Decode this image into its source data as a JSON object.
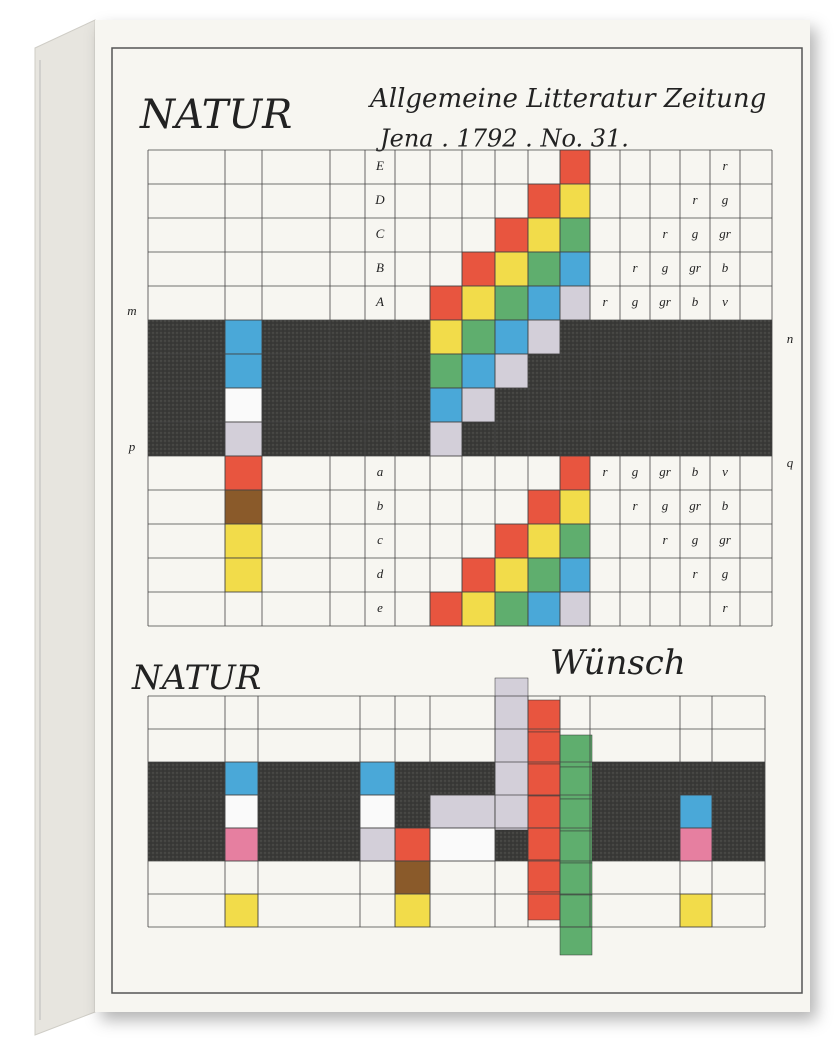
{
  "header": {
    "title": "NATUR",
    "journal": "Allgemeine Litteratur Zeitung",
    "imprint": "Jena . 1792 . No. 31."
  },
  "upper_table": {
    "side_labels": [
      "m",
      "n",
      "p",
      "q"
    ],
    "row_letters_top": [
      "E",
      "D",
      "C",
      "B",
      "A"
    ],
    "row_letters_bottom": [
      "a",
      "b",
      "c",
      "d",
      "e"
    ],
    "right_letters": [
      [
        "r"
      ],
      [
        "r",
        "g"
      ],
      [
        "r",
        "g",
        "gr"
      ],
      [
        "r",
        "g",
        "gr",
        "b"
      ],
      [
        "r",
        "g",
        "gr",
        "b",
        "v"
      ]
    ]
  },
  "lower_section": {
    "title": "NATUR",
    "subtitle": "Wünsch"
  }
}
